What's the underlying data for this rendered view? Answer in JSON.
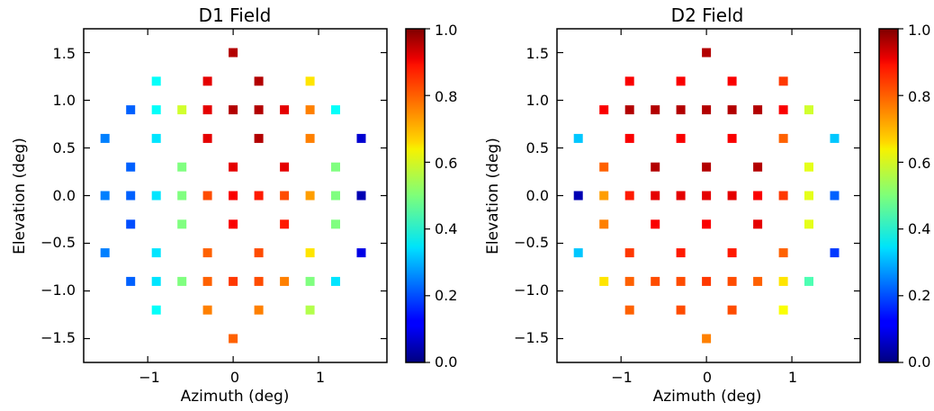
{
  "chart_data": [
    {
      "type": "scatter",
      "title": "D1 Field",
      "xlabel": "Azimuth (deg)",
      "ylabel": "Elevation (deg)",
      "xlim": [
        -1.75,
        1.8
      ],
      "ylim": [
        -1.75,
        1.75
      ],
      "xticks": [
        -1,
        0,
        1
      ],
      "xtick_labels": [
        "−1",
        "0",
        "1"
      ],
      "yticks": [
        -1.5,
        -1.0,
        -0.5,
        0.0,
        0.5,
        1.0,
        1.5
      ],
      "ytick_labels": [
        "−1.5",
        "−1.0",
        "−0.5",
        "0.0",
        "0.5",
        "1.0",
        "1.5"
      ],
      "colorbar": {
        "colormap": "jet",
        "range": [
          0,
          1
        ],
        "ticks": [
          0,
          0.2,
          0.4,
          0.6,
          0.8,
          1.0
        ],
        "tick_labels": [
          "0.0",
          "0.2",
          "0.4",
          "0.6",
          "0.8",
          "1.0"
        ]
      },
      "points": [
        {
          "x": 0,
          "y": 1.5,
          "value": 0.95
        },
        {
          "x": -0.9,
          "y": 1.2,
          "value": 0.38
        },
        {
          "x": -0.3,
          "y": 1.2,
          "value": 0.9
        },
        {
          "x": 0.3,
          "y": 1.2,
          "value": 0.95
        },
        {
          "x": 0.9,
          "y": 1.2,
          "value": 0.65
        },
        {
          "x": -1.2,
          "y": 0.9,
          "value": 0.22
        },
        {
          "x": -0.9,
          "y": 0.9,
          "value": 0.38
        },
        {
          "x": -0.6,
          "y": 0.9,
          "value": 0.58
        },
        {
          "x": -0.3,
          "y": 0.9,
          "value": 0.9
        },
        {
          "x": 0,
          "y": 0.9,
          "value": 0.95
        },
        {
          "x": 0.3,
          "y": 0.9,
          "value": 0.95
        },
        {
          "x": 0.6,
          "y": 0.9,
          "value": 0.9
        },
        {
          "x": 0.9,
          "y": 0.9,
          "value": 0.75
        },
        {
          "x": 1.2,
          "y": 0.9,
          "value": 0.38
        },
        {
          "x": -1.5,
          "y": 0.6,
          "value": 0.25
        },
        {
          "x": -0.9,
          "y": 0.6,
          "value": 0.35
        },
        {
          "x": -0.3,
          "y": 0.6,
          "value": 0.9
        },
        {
          "x": 0.3,
          "y": 0.6,
          "value": 0.95
        },
        {
          "x": 0.9,
          "y": 0.6,
          "value": 0.75
        },
        {
          "x": 1.5,
          "y": 0.6,
          "value": 0.08
        },
        {
          "x": -1.2,
          "y": 0.3,
          "value": 0.22
        },
        {
          "x": -0.6,
          "y": 0.3,
          "value": 0.5
        },
        {
          "x": 0,
          "y": 0.3,
          "value": 0.9
        },
        {
          "x": 0.6,
          "y": 0.3,
          "value": 0.9
        },
        {
          "x": 1.2,
          "y": 0.3,
          "value": 0.5
        },
        {
          "x": -1.5,
          "y": 0,
          "value": 0.25
        },
        {
          "x": -1.2,
          "y": 0,
          "value": 0.22
        },
        {
          "x": -0.9,
          "y": 0,
          "value": 0.35
        },
        {
          "x": -0.6,
          "y": 0,
          "value": 0.5
        },
        {
          "x": -0.3,
          "y": 0,
          "value": 0.8
        },
        {
          "x": 0,
          "y": 0,
          "value": 0.88
        },
        {
          "x": 0.3,
          "y": 0,
          "value": 0.85
        },
        {
          "x": 0.6,
          "y": 0,
          "value": 0.8
        },
        {
          "x": 0.9,
          "y": 0,
          "value": 0.72
        },
        {
          "x": 1.2,
          "y": 0,
          "value": 0.5
        },
        {
          "x": 1.5,
          "y": 0,
          "value": 0.05
        },
        {
          "x": -1.2,
          "y": -0.3,
          "value": 0.2
        },
        {
          "x": -0.6,
          "y": -0.3,
          "value": 0.5
        },
        {
          "x": 0,
          "y": -0.3,
          "value": 0.88
        },
        {
          "x": 0.6,
          "y": -0.3,
          "value": 0.85
        },
        {
          "x": 1.2,
          "y": -0.3,
          "value": 0.5
        },
        {
          "x": -1.5,
          "y": -0.6,
          "value": 0.25
        },
        {
          "x": -0.9,
          "y": -0.6,
          "value": 0.35
        },
        {
          "x": -0.3,
          "y": -0.6,
          "value": 0.78
        },
        {
          "x": 0.3,
          "y": -0.6,
          "value": 0.8
        },
        {
          "x": 0.9,
          "y": -0.6,
          "value": 0.65
        },
        {
          "x": 1.5,
          "y": -0.6,
          "value": 0.1
        },
        {
          "x": -1.2,
          "y": -0.9,
          "value": 0.22
        },
        {
          "x": -0.9,
          "y": -0.9,
          "value": 0.35
        },
        {
          "x": -0.6,
          "y": -0.9,
          "value": 0.5
        },
        {
          "x": -0.3,
          "y": -0.9,
          "value": 0.78
        },
        {
          "x": 0,
          "y": -0.9,
          "value": 0.82
        },
        {
          "x": 0.3,
          "y": -0.9,
          "value": 0.8
        },
        {
          "x": 0.6,
          "y": -0.9,
          "value": 0.75
        },
        {
          "x": 0.9,
          "y": -0.9,
          "value": 0.5
        },
        {
          "x": 1.2,
          "y": -0.9,
          "value": 0.35
        },
        {
          "x": -0.9,
          "y": -1.2,
          "value": 0.38
        },
        {
          "x": -0.3,
          "y": -1.2,
          "value": 0.75
        },
        {
          "x": 0.3,
          "y": -1.2,
          "value": 0.75
        },
        {
          "x": 0.9,
          "y": -1.2,
          "value": 0.55
        },
        {
          "x": 0,
          "y": -1.5,
          "value": 0.78
        }
      ]
    },
    {
      "type": "scatter",
      "title": "D2 Field",
      "xlabel": "Azimuth (deg)",
      "ylabel": "Elevation (deg)",
      "xlim": [
        -1.75,
        1.8
      ],
      "ylim": [
        -1.75,
        1.75
      ],
      "xticks": [
        -1,
        0,
        1
      ],
      "xtick_labels": [
        "−1",
        "0",
        "1"
      ],
      "yticks": [
        -1.5,
        -1.0,
        -0.5,
        0.0,
        0.5,
        1.0,
        1.5
      ],
      "ytick_labels": [
        "−1.5",
        "−1.0",
        "−0.5",
        "0.0",
        "0.5",
        "1.0",
        "1.5"
      ],
      "colorbar": {
        "colormap": "jet",
        "range": [
          0,
          1
        ],
        "ticks": [
          0,
          0.2,
          0.4,
          0.6,
          0.8,
          1.0
        ],
        "tick_labels": [
          "0.0",
          "0.2",
          "0.4",
          "0.6",
          "0.8",
          "1.0"
        ]
      },
      "points": [
        {
          "x": 0,
          "y": 1.5,
          "value": 0.95
        },
        {
          "x": -0.9,
          "y": 1.2,
          "value": 0.88
        },
        {
          "x": -0.3,
          "y": 1.2,
          "value": 0.88
        },
        {
          "x": 0.3,
          "y": 1.2,
          "value": 0.88
        },
        {
          "x": 0.9,
          "y": 1.2,
          "value": 0.82
        },
        {
          "x": -1.2,
          "y": 0.9,
          "value": 0.88
        },
        {
          "x": -0.9,
          "y": 0.9,
          "value": 0.95
        },
        {
          "x": -0.6,
          "y": 0.9,
          "value": 0.95
        },
        {
          "x": -0.3,
          "y": 0.9,
          "value": 0.95
        },
        {
          "x": 0,
          "y": 0.9,
          "value": 0.95
        },
        {
          "x": 0.3,
          "y": 0.9,
          "value": 0.95
        },
        {
          "x": 0.6,
          "y": 0.9,
          "value": 0.95
        },
        {
          "x": 0.9,
          "y": 0.9,
          "value": 0.88
        },
        {
          "x": 1.2,
          "y": 0.9,
          "value": 0.58
        },
        {
          "x": -1.5,
          "y": 0.6,
          "value": 0.32
        },
        {
          "x": -0.9,
          "y": 0.6,
          "value": 0.88
        },
        {
          "x": -0.3,
          "y": 0.6,
          "value": 0.88
        },
        {
          "x": 0.3,
          "y": 0.6,
          "value": 0.88
        },
        {
          "x": 0.9,
          "y": 0.6,
          "value": 0.78
        },
        {
          "x": 1.5,
          "y": 0.6,
          "value": 0.32
        },
        {
          "x": -1.2,
          "y": 0.3,
          "value": 0.78
        },
        {
          "x": -0.6,
          "y": 0.3,
          "value": 0.95
        },
        {
          "x": 0,
          "y": 0.3,
          "value": 0.95
        },
        {
          "x": 0.6,
          "y": 0.3,
          "value": 0.95
        },
        {
          "x": 1.2,
          "y": 0.3,
          "value": 0.6
        },
        {
          "x": -1.5,
          "y": 0,
          "value": 0.05
        },
        {
          "x": -1.2,
          "y": 0,
          "value": 0.72
        },
        {
          "x": -0.9,
          "y": 0,
          "value": 0.85
        },
        {
          "x": -0.6,
          "y": 0,
          "value": 0.9
        },
        {
          "x": -0.3,
          "y": 0,
          "value": 0.9
        },
        {
          "x": 0,
          "y": 0,
          "value": 0.9
        },
        {
          "x": 0.3,
          "y": 0,
          "value": 0.9
        },
        {
          "x": 0.6,
          "y": 0,
          "value": 0.88
        },
        {
          "x": 0.9,
          "y": 0,
          "value": 0.82
        },
        {
          "x": 1.2,
          "y": 0,
          "value": 0.6
        },
        {
          "x": 1.5,
          "y": 0,
          "value": 0.22
        },
        {
          "x": -1.2,
          "y": -0.3,
          "value": 0.75
        },
        {
          "x": -0.6,
          "y": -0.3,
          "value": 0.88
        },
        {
          "x": 0,
          "y": -0.3,
          "value": 0.88
        },
        {
          "x": 0.6,
          "y": -0.3,
          "value": 0.9
        },
        {
          "x": 1.2,
          "y": -0.3,
          "value": 0.6
        },
        {
          "x": -1.5,
          "y": -0.6,
          "value": 0.32
        },
        {
          "x": -0.9,
          "y": -0.6,
          "value": 0.82
        },
        {
          "x": -0.3,
          "y": -0.6,
          "value": 0.85
        },
        {
          "x": 0.3,
          "y": -0.6,
          "value": 0.85
        },
        {
          "x": 0.9,
          "y": -0.6,
          "value": 0.78
        },
        {
          "x": 1.5,
          "y": -0.6,
          "value": 0.18
        },
        {
          "x": -1.2,
          "y": -0.9,
          "value": 0.65
        },
        {
          "x": -0.9,
          "y": -0.9,
          "value": 0.78
        },
        {
          "x": -0.6,
          "y": -0.9,
          "value": 0.8
        },
        {
          "x": -0.3,
          "y": -0.9,
          "value": 0.8
        },
        {
          "x": 0,
          "y": -0.9,
          "value": 0.82
        },
        {
          "x": 0.3,
          "y": -0.9,
          "value": 0.8
        },
        {
          "x": 0.6,
          "y": -0.9,
          "value": 0.78
        },
        {
          "x": 0.9,
          "y": -0.9,
          "value": 0.65
        },
        {
          "x": 1.2,
          "y": -0.9,
          "value": 0.45
        },
        {
          "x": -0.9,
          "y": -1.2,
          "value": 0.78
        },
        {
          "x": -0.3,
          "y": -1.2,
          "value": 0.8
        },
        {
          "x": 0.3,
          "y": -1.2,
          "value": 0.8
        },
        {
          "x": 0.9,
          "y": -1.2,
          "value": 0.62
        },
        {
          "x": 0,
          "y": -1.5,
          "value": 0.75
        }
      ]
    }
  ]
}
